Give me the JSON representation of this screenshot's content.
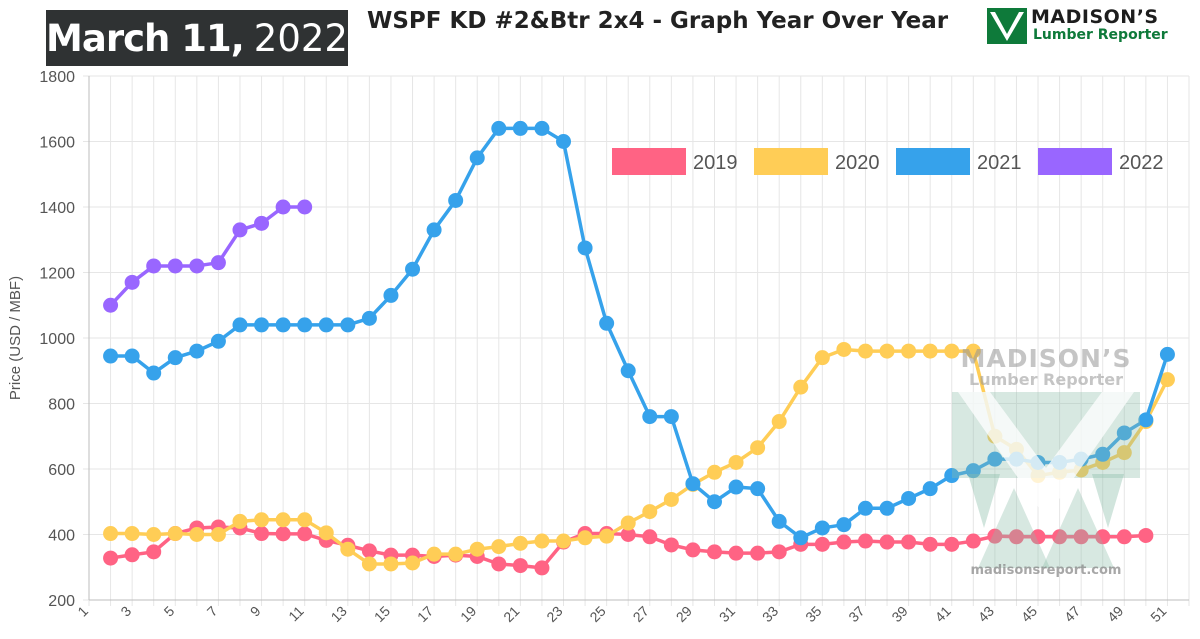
{
  "header": {
    "date_month_day": "March 11,",
    "date_year": "2022",
    "title": "WSPF KD #2&Btr 2x4 - Graph Year Over Year",
    "logo_line1": "MADISON’S",
    "logo_line2": "Lumber Reporter",
    "logo_color": "#0e7a3a"
  },
  "watermark": {
    "line1": "MADISON’S",
    "line2": "Lumber Reporter",
    "url": "madisonsreport.com"
  },
  "chart_data": {
    "type": "line",
    "title": "WSPF KD #2&Btr 2x4 - Graph Year Over Year",
    "xlabel": "",
    "ylabel": "Price (USD / MBF)",
    "xlim": [
      1,
      52
    ],
    "ylim": [
      200,
      1800
    ],
    "x_ticks": [
      1,
      3,
      5,
      7,
      9,
      11,
      13,
      15,
      17,
      19,
      21,
      23,
      25,
      27,
      29,
      31,
      33,
      35,
      37,
      39,
      41,
      43,
      45,
      47,
      49,
      51
    ],
    "y_ticks": [
      200,
      400,
      600,
      800,
      1000,
      1200,
      1400,
      1600,
      1800
    ],
    "grid": true,
    "legend_position": "top-right",
    "series": [
      {
        "name": "2019",
        "color": "#ff6384",
        "x_start": 2,
        "values": [
          328,
          338,
          347,
          403,
          420,
          423,
          420,
          403,
          402,
          402,
          382,
          367,
          350,
          337,
          337,
          333,
          337,
          333,
          310,
          305,
          298,
          377,
          403,
          403,
          400,
          393,
          368,
          353,
          347,
          343,
          343,
          347,
          370,
          370,
          377,
          380,
          377,
          377,
          370,
          370,
          380,
          395,
          393,
          393,
          393,
          393,
          393,
          393,
          397
        ]
      },
      {
        "name": "2020",
        "color": "#ffcd56",
        "x_start": 2,
        "values": [
          403,
          403,
          400,
          403,
          400,
          400,
          440,
          445,
          445,
          445,
          405,
          355,
          310,
          310,
          313,
          340,
          340,
          355,
          363,
          373,
          380,
          380,
          390,
          395,
          435,
          470,
          507,
          553,
          590,
          620,
          665,
          745,
          850,
          940,
          965,
          960,
          960,
          960,
          960,
          960,
          960,
          700,
          660,
          580,
          590,
          597,
          620,
          650,
          745,
          873
        ]
      },
      {
        "name": "2021",
        "color": "#36a2eb",
        "x_start": 2,
        "values": [
          945,
          945,
          893,
          940,
          960,
          990,
          1040,
          1040,
          1040,
          1040,
          1040,
          1040,
          1060,
          1130,
          1210,
          1330,
          1420,
          1550,
          1640,
          1640,
          1640,
          1600,
          1275,
          1045,
          900,
          760,
          760,
          555,
          500,
          545,
          540,
          440,
          390,
          420,
          430,
          480,
          480,
          510,
          540,
          580,
          595,
          630,
          630,
          620,
          620,
          630,
          645,
          710,
          750,
          950
        ]
      },
      {
        "name": "2022",
        "color": "#9966ff",
        "x_start": 2,
        "values": [
          1100,
          1170,
          1220,
          1220,
          1220,
          1230,
          1330,
          1350,
          1400,
          1400
        ]
      }
    ]
  }
}
